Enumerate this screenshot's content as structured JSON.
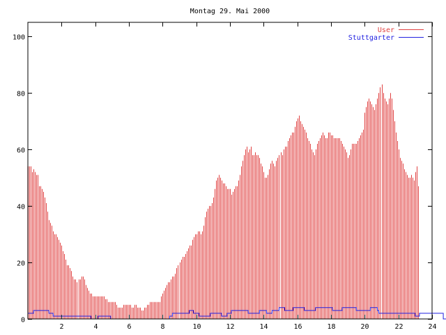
{
  "chart_data": {
    "type": "bar",
    "title": "Montag 29. Mai 2000",
    "xlabel": "",
    "ylabel": "",
    "xlim": [
      0,
      24
    ],
    "ylim": [
      0,
      105
    ],
    "x_ticks": [
      2,
      4,
      6,
      8,
      10,
      12,
      14,
      16,
      18,
      20,
      22,
      24
    ],
    "y_ticks": [
      0,
      20,
      40,
      60,
      80,
      100
    ],
    "grid": false,
    "legend_position": "top-right",
    "sample_interval_minutes": 5,
    "series": [
      {
        "name": "User",
        "style": "impulses",
        "color": "#e04040",
        "values": [
          54,
          54,
          54,
          52,
          53,
          52,
          51,
          51,
          47,
          47,
          46,
          45,
          43,
          41,
          38,
          35,
          34,
          33,
          31,
          30,
          30,
          29,
          28,
          27,
          26,
          24,
          23,
          21,
          19,
          19,
          18,
          17,
          15,
          14,
          14,
          13,
          14,
          14,
          15,
          15,
          14,
          12,
          11,
          10,
          9,
          9,
          8,
          8,
          8,
          8,
          8,
          8,
          8,
          8,
          8,
          7,
          7,
          6,
          6,
          6,
          6,
          6,
          6,
          5,
          4,
          4,
          4,
          4,
          5,
          5,
          5,
          5,
          5,
          5,
          4,
          4,
          5,
          5,
          4,
          4,
          4,
          3,
          3,
          4,
          4,
          5,
          5,
          6,
          6,
          6,
          6,
          6,
          6,
          6,
          6,
          8,
          9,
          10,
          11,
          12,
          13,
          13,
          14,
          15,
          15,
          16,
          18,
          19,
          20,
          21,
          22,
          22,
          23,
          24,
          25,
          26,
          26,
          28,
          29,
          30,
          30,
          31,
          31,
          30,
          31,
          33,
          36,
          38,
          39,
          40,
          40,
          41,
          43,
          46,
          49,
          50,
          51,
          50,
          49,
          48,
          48,
          47,
          46,
          46,
          46,
          44,
          45,
          46,
          47,
          47,
          49,
          51,
          54,
          56,
          58,
          60,
          61,
          59,
          60,
          61,
          58,
          58,
          59,
          58,
          58,
          57,
          55,
          54,
          52,
          50,
          50,
          51,
          53,
          55,
          56,
          55,
          54,
          56,
          57,
          58,
          59,
          58,
          60,
          61,
          61,
          63,
          64,
          65,
          66,
          66,
          68,
          70,
          71,
          72,
          70,
          69,
          68,
          67,
          66,
          64,
          63,
          62,
          60,
          59,
          58,
          60,
          62,
          63,
          64,
          65,
          66,
          65,
          64,
          64,
          66,
          66,
          65,
          65,
          64,
          64,
          64,
          64,
          64,
          63,
          62,
          61,
          60,
          59,
          57,
          58,
          60,
          62,
          62,
          62,
          62,
          63,
          64,
          65,
          66,
          67,
          73,
          75,
          77,
          78,
          77,
          76,
          75,
          74,
          76,
          78,
          80,
          82,
          83,
          80,
          78,
          77,
          76,
          78,
          80,
          78,
          74,
          70,
          66,
          63,
          60,
          57,
          56,
          55,
          53,
          52,
          51,
          50,
          50,
          51,
          50,
          49,
          52,
          54,
          47
        ]
      },
      {
        "name": "Stuttgarter",
        "style": "line",
        "color": "#2020e0",
        "values": [
          2,
          2,
          2,
          2,
          3,
          3,
          3,
          3,
          3,
          3,
          3,
          3,
          3,
          3,
          3,
          2,
          2,
          2,
          1,
          1,
          1,
          1,
          1,
          1,
          1,
          1,
          1,
          1,
          1,
          1,
          1,
          1,
          1,
          1,
          1,
          1,
          1,
          1,
          1,
          1,
          1,
          1,
          1,
          1,
          1,
          0,
          0,
          0,
          0,
          0,
          1,
          1,
          1,
          1,
          1,
          1,
          1,
          1,
          1,
          0,
          0,
          0,
          0,
          0,
          0,
          0,
          0,
          0,
          0,
          0,
          0,
          0,
          0,
          0,
          0,
          0,
          0,
          0,
          0,
          0,
          0,
          0,
          0,
          0,
          0,
          0,
          0,
          0,
          0,
          0,
          0,
          0,
          0,
          0,
          0,
          0,
          0,
          0,
          0,
          0,
          0,
          1,
          1,
          2,
          2,
          2,
          2,
          2,
          2,
          2,
          2,
          2,
          2,
          2,
          2,
          3,
          3,
          3,
          2,
          2,
          2,
          2,
          1,
          1,
          1,
          1,
          1,
          1,
          1,
          1,
          2,
          2,
          2,
          2,
          2,
          2,
          2,
          2,
          1,
          1,
          1,
          1,
          2,
          2,
          2,
          3,
          3,
          3,
          3,
          3,
          3,
          3,
          3,
          3,
          3,
          3,
          3,
          2,
          2,
          2,
          2,
          2,
          2,
          2,
          2,
          3,
          3,
          3,
          3,
          3,
          2,
          2,
          2,
          2,
          3,
          3,
          3,
          3,
          3,
          4,
          4,
          4,
          4,
          3,
          3,
          3,
          3,
          3,
          3,
          4,
          4,
          4,
          4,
          4,
          4,
          4,
          4,
          3,
          3,
          3,
          3,
          3,
          3,
          3,
          3,
          4,
          4,
          4,
          4,
          4,
          4,
          4,
          4,
          4,
          4,
          4,
          4,
          3,
          3,
          3,
          3,
          3,
          3,
          3,
          4,
          4,
          4,
          4,
          4,
          4,
          4,
          4,
          4,
          4,
          3,
          3,
          3,
          3,
          3,
          3,
          3,
          3,
          3,
          3,
          4,
          4,
          4,
          4,
          4,
          3,
          2,
          2,
          2,
          2,
          2,
          2,
          2,
          2,
          2,
          2,
          2,
          2,
          2,
          2,
          2,
          2,
          2,
          2,
          2,
          2,
          2,
          2,
          2,
          2,
          2,
          2,
          1,
          1,
          1,
          2,
          2,
          2,
          2,
          2,
          2,
          2,
          2,
          2,
          2,
          2,
          2,
          2,
          2,
          2,
          2,
          2,
          0,
          0,
          0,
          0,
          0,
          0,
          0,
          0,
          0,
          0,
          0,
          0,
          0,
          0,
          0
        ]
      }
    ]
  }
}
